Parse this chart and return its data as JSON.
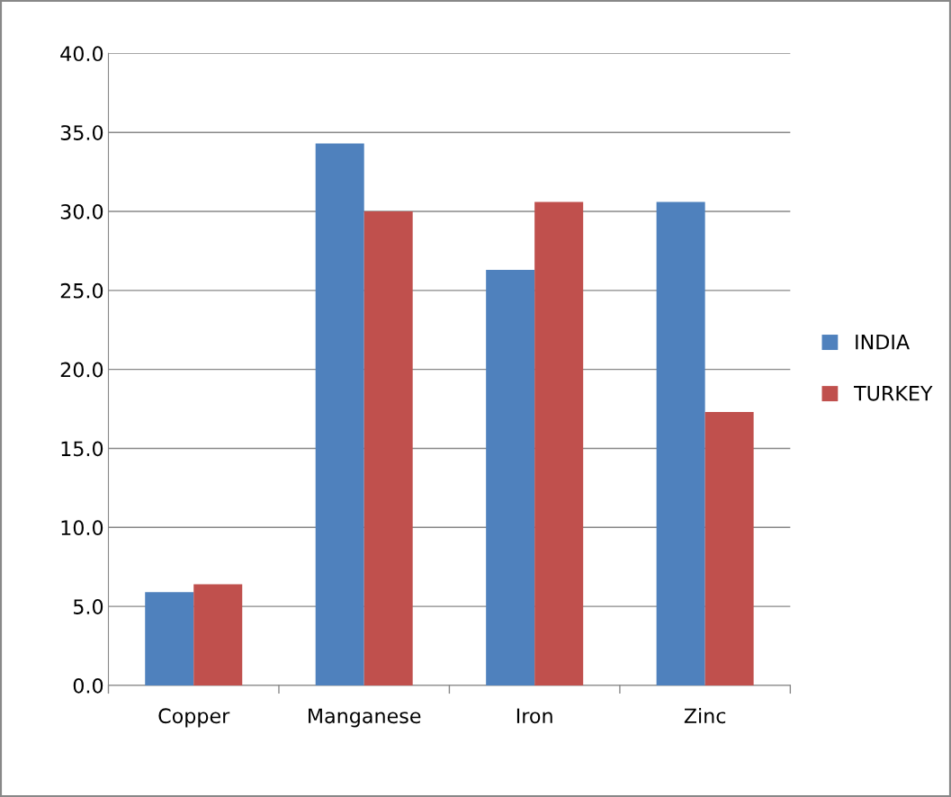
{
  "chart_data": {
    "type": "bar",
    "categories": [
      "Copper",
      "Manganese",
      "Iron",
      "Zinc"
    ],
    "series": [
      {
        "name": "INDIA",
        "color": "#4f81bd",
        "values": [
          5.9,
          34.3,
          26.3,
          30.6
        ]
      },
      {
        "name": "TURKEY",
        "color": "#c0504d",
        "values": [
          6.4,
          30.0,
          30.6,
          17.3
        ]
      }
    ],
    "ylim": [
      0,
      40
    ],
    "yticks": [
      {
        "value": 0,
        "label": "0.0"
      },
      {
        "value": 5,
        "label": "5.0"
      },
      {
        "value": 10,
        "label": "10.0"
      },
      {
        "value": 15,
        "label": "15.0"
      },
      {
        "value": 20,
        "label": "20.0"
      },
      {
        "value": 25,
        "label": "25.0"
      },
      {
        "value": 30,
        "label": "30.0"
      },
      {
        "value": 35,
        "label": "35.0"
      },
      {
        "value": 40,
        "label": "40.0"
      }
    ],
    "grid": "y",
    "legend": "right"
  }
}
